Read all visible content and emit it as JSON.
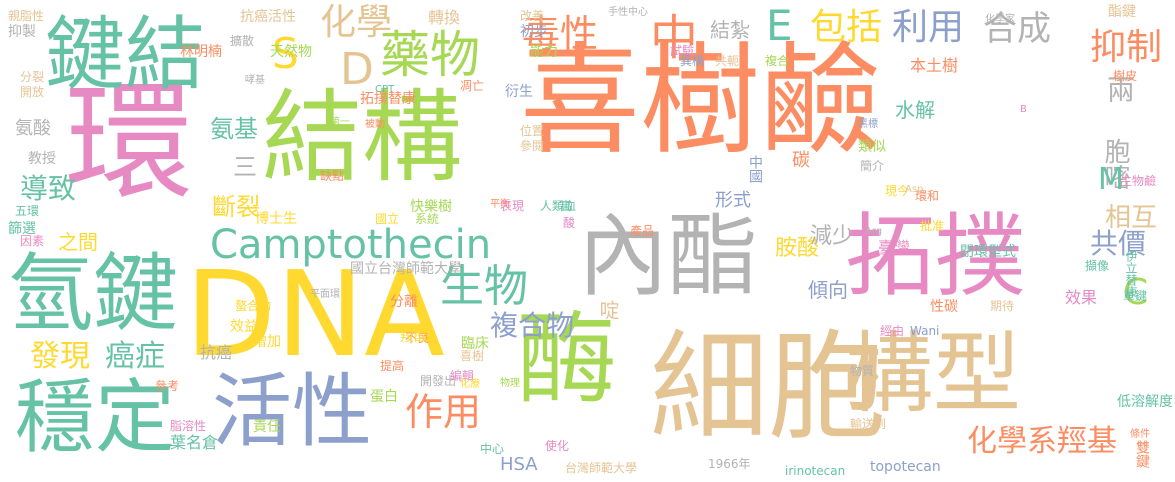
{
  "palette": {
    "orange": "#FC8D62",
    "green": "#A6D854",
    "blue": "#8DA0CB",
    "pink": "#E78AC3",
    "yellow": "#FFD92F",
    "tan": "#E5C494",
    "grey": "#B3B3B3",
    "teal": "#66C2A5"
  },
  "words": [
    "喜樹鹼",
    "環",
    "結構",
    "拓撲",
    "DNA",
    "內酯",
    "細胞",
    "鍵結",
    "酶",
    "氫鍵",
    "構型",
    "穩定",
    "活性",
    "Camptothecin",
    "藥物",
    "化學",
    "毒性",
    "中",
    "包括",
    "利用",
    "合成",
    "抑制",
    "生物",
    "作用",
    "化學系羥基",
    "複合物",
    "癌症",
    "發現",
    "結紮",
    "水解",
    "氨基",
    "胺酸",
    "導致",
    "斷裂",
    "兩",
    "胞嘧",
    "相互",
    "共價",
    "減少",
    "傾向",
    "碳",
    "啶",
    "形式",
    "國立台灣師範大學",
    "臺灣",
    "HSA",
    "台灣師範大學",
    "topotecan",
    "irinotecan",
    "1966年",
    "E",
    "S",
    "D",
    "M",
    "C",
    "三",
    "之間",
    "篩選",
    "教授",
    "氨酸",
    "開放",
    "抑製",
    "分裂",
    "天然物",
    "拓撲替康",
    "林明楠",
    "博士生",
    "缺點",
    "快樂樹",
    "平衡",
    "CPT",
    "衍生",
    "能力",
    "初步",
    "凋亡",
    "人類血",
    "高",
    "中國",
    "黑標",
    "類似",
    "簡介",
    "本土樹",
    "樹皮",
    "化學家",
    "酯鍵",
    "雙鍵",
    "低溶解度",
    "效果",
    "擷像",
    "單鍵",
    "伊立替康",
    "批准",
    "現今",
    "環和",
    "生物鹼",
    "抗癌活性",
    "轉換",
    "擴散",
    "親脂性",
    "手性中心",
    "改善",
    "試驗",
    "異構",
    "共軛",
    "複合",
    "閉環型式",
    "葉名倉",
    "脂溶性",
    "參考",
    "因素",
    "五環",
    "抗癌",
    "效益",
    "螯合物",
    "平面環",
    "分離",
    "提高",
    "不良",
    "開發出",
    "喜樹",
    "臨床",
    "編輯",
    "物理",
    "化療",
    "中心",
    "使化",
    "酸",
    "產品",
    "系統",
    "國立",
    "表現",
    "參閱",
    "位置",
    "被動",
    "輸送到",
    "物質",
    "經由",
    "性碳",
    "期待",
    "Wani",
    "條件",
    "蛋白",
    "羧酸",
    "責任",
    "第一",
    "增加",
    "哮基",
    "B",
    "Arg",
    "Asp"
  ]
}
